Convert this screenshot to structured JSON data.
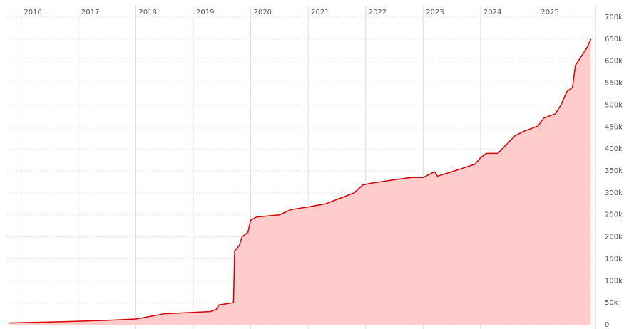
{
  "chart_data": {
    "type": "area",
    "x": [
      2015.8,
      2016.5,
      2017.0,
      2017.5,
      2018.0,
      2018.3,
      2018.5,
      2019.0,
      2019.3,
      2019.4,
      2019.45,
      2019.7,
      2019.72,
      2019.8,
      2019.85,
      2019.95,
      2020.0,
      2020.1,
      2020.5,
      2020.7,
      2021.0,
      2021.3,
      2021.5,
      2021.8,
      2021.95,
      2022.1,
      2022.5,
      2022.8,
      2023.0,
      2023.2,
      2023.25,
      2023.5,
      2023.9,
      2024.0,
      2024.1,
      2024.3,
      2024.45,
      2024.6,
      2024.75,
      2025.0,
      2025.1,
      2025.3,
      2025.4,
      2025.5,
      2025.6,
      2025.65,
      2025.75,
      2025.85,
      2025.92
    ],
    "series": [
      {
        "color": "#d40000",
        "fill": "#ffcccc",
        "values": [
          4000,
          6000,
          8000,
          10000,
          13000,
          20000,
          25000,
          28000,
          30000,
          35000,
          45000,
          50000,
          168000,
          180000,
          200000,
          210000,
          238000,
          245000,
          250000,
          262000,
          268000,
          275000,
          285000,
          300000,
          318000,
          322000,
          330000,
          335000,
          335000,
          348000,
          338000,
          348000,
          365000,
          380000,
          390000,
          390000,
          410000,
          430000,
          440000,
          452000,
          470000,
          480000,
          500000,
          530000,
          540000,
          590000,
          610000,
          630000,
          650000
        ]
      }
    ],
    "xlim": [
      2015.76,
      2026.0
    ],
    "xticks": [
      2016,
      2017,
      2018,
      2019,
      2020,
      2021,
      2022,
      2023,
      2024,
      2025
    ],
    "ylim": [
      0,
      700000
    ],
    "yticks": [
      0,
      {
        "value": 50000,
        "label": "50k"
      },
      {
        "value": 100000,
        "label": "100k"
      },
      {
        "value": 150000,
        "label": "150k"
      },
      {
        "value": 200000,
        "label": "200k"
      },
      {
        "value": 250000,
        "label": "250k"
      },
      {
        "value": 300000,
        "label": "300k"
      },
      {
        "value": 350000,
        "label": "350k"
      },
      {
        "value": 400000,
        "label": "400k"
      },
      {
        "value": 450000,
        "label": "450k"
      },
      {
        "value": 500000,
        "label": "500k"
      },
      {
        "value": 550000,
        "label": "550k"
      },
      {
        "value": 600000,
        "label": "600k"
      },
      {
        "value": 650000,
        "label": "650k"
      },
      {
        "value": 700000,
        "label": "700k"
      }
    ],
    "grid": true
  }
}
